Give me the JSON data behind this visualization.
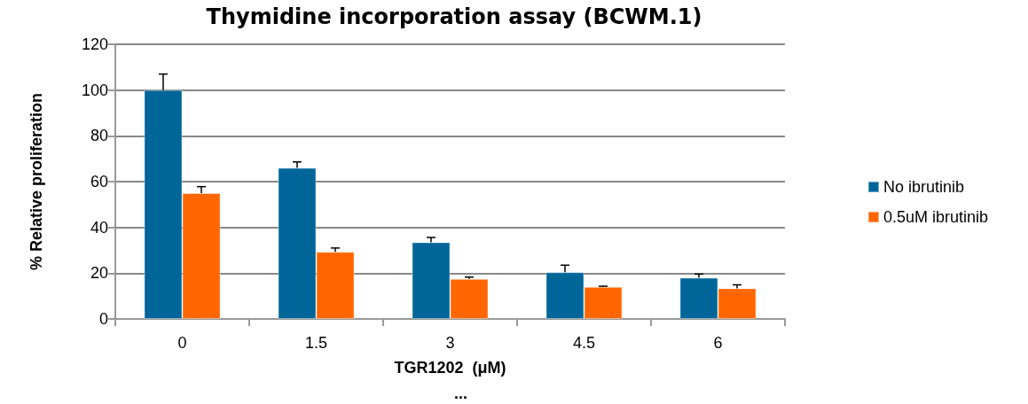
{
  "chart_data": {
    "type": "bar",
    "title": "Thymidine incorporation assay (BCWM.1)",
    "xlabel": "TGR1202  (μM)",
    "ylabel": "% Relative proliferation",
    "categories": [
      "0",
      "1.5",
      "3",
      "4.5",
      "6"
    ],
    "series": [
      {
        "name": "No ibrutinib",
        "color": "#006699",
        "values": [
          100,
          66,
          33.5,
          20.4,
          18
        ],
        "errors": [
          [
            100,
            107
          ],
          [
            66,
            68.6
          ],
          [
            33.5,
            35.6
          ],
          [
            20.4,
            23.5
          ],
          [
            18,
            19.6
          ]
        ]
      },
      {
        "name": "0.5uM ibrutinib",
        "color": "#ff6600",
        "values": [
          55,
          29.3,
          17.5,
          14,
          13.4
        ],
        "errors": [
          [
            55,
            57.8
          ],
          [
            29.3,
            31
          ],
          [
            17.5,
            18.3
          ],
          [
            14,
            14.3
          ],
          [
            13.4,
            14.9
          ]
        ]
      }
    ],
    "ylim": [
      0,
      120
    ],
    "yticks": [
      0,
      20,
      40,
      60,
      80,
      100,
      120
    ],
    "grid": "y",
    "legend": "right",
    "annotations": [
      "..."
    ]
  }
}
